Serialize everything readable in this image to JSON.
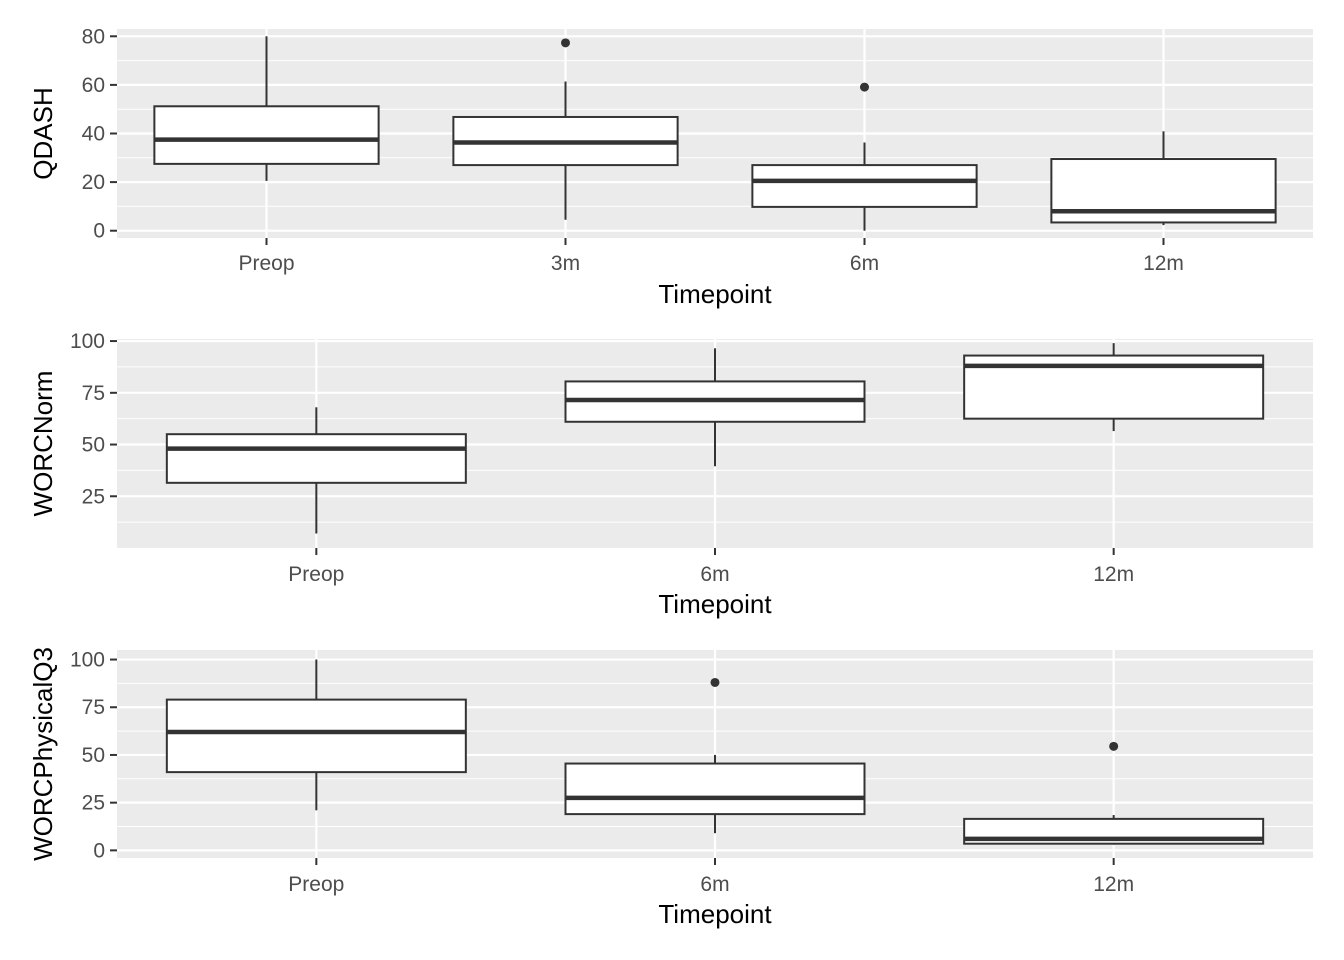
{
  "chart_data": [
    {
      "type": "boxplot",
      "xlabel": "Timepoint",
      "ylabel": "QDASH",
      "categories": [
        "Preop",
        "3m",
        "6m",
        "12m"
      ],
      "ylim": [
        -3,
        83
      ],
      "yticks": [
        0,
        20,
        40,
        60,
        80
      ],
      "grid": true,
      "boxes": [
        {
          "category": "Preop",
          "min": 20.5,
          "q1": 27.5,
          "median": 37.5,
          "q3": 51.2,
          "max": 80,
          "outliers": []
        },
        {
          "category": "3m",
          "min": 4.5,
          "q1": 27.0,
          "median": 36.3,
          "q3": 46.8,
          "max": 61.4,
          "outliers": [
            77.3
          ]
        },
        {
          "category": "6m",
          "min": 0,
          "q1": 9.8,
          "median": 20.5,
          "q3": 27.0,
          "max": 36.3,
          "outliers": [
            59.1
          ]
        },
        {
          "category": "12m",
          "min": 2.3,
          "q1": 3.4,
          "median": 8.0,
          "q3": 29.5,
          "max": 40.9,
          "outliers": []
        }
      ]
    },
    {
      "type": "boxplot",
      "xlabel": "Timepoint",
      "ylabel": "WORCNorm",
      "categories": [
        "Preop",
        "6m",
        "12m"
      ],
      "ylim": [
        0,
        101
      ],
      "yticks": [
        25,
        50,
        75,
        100
      ],
      "grid": true,
      "boxes": [
        {
          "category": "Preop",
          "min": 7,
          "q1": 31.5,
          "median": 48,
          "q3": 55,
          "max": 68,
          "outliers": []
        },
        {
          "category": "6m",
          "min": 39.5,
          "q1": 61,
          "median": 71.5,
          "q3": 80.5,
          "max": 96.5,
          "outliers": []
        },
        {
          "category": "12m",
          "min": 56.5,
          "q1": 62.5,
          "median": 88,
          "q3": 93,
          "max": 99,
          "outliers": []
        }
      ]
    },
    {
      "type": "boxplot",
      "xlabel": "Timepoint",
      "ylabel": "WORCPhysicalQ3",
      "categories": [
        "Preop",
        "6m",
        "12m"
      ],
      "ylim": [
        -4,
        105
      ],
      "yticks": [
        0,
        25,
        50,
        75,
        100
      ],
      "grid": true,
      "boxes": [
        {
          "category": "Preop",
          "min": 21,
          "q1": 41,
          "median": 62,
          "q3": 79,
          "max": 100,
          "outliers": []
        },
        {
          "category": "6m",
          "min": 9,
          "q1": 19,
          "median": 27.5,
          "q3": 45.5,
          "max": 50,
          "outliers": [
            88
          ]
        },
        {
          "category": "12m",
          "min": 3,
          "q1": 3.5,
          "median": 6,
          "q3": 16.5,
          "max": 18.5,
          "outliers": [
            54.5
          ]
        }
      ]
    }
  ]
}
